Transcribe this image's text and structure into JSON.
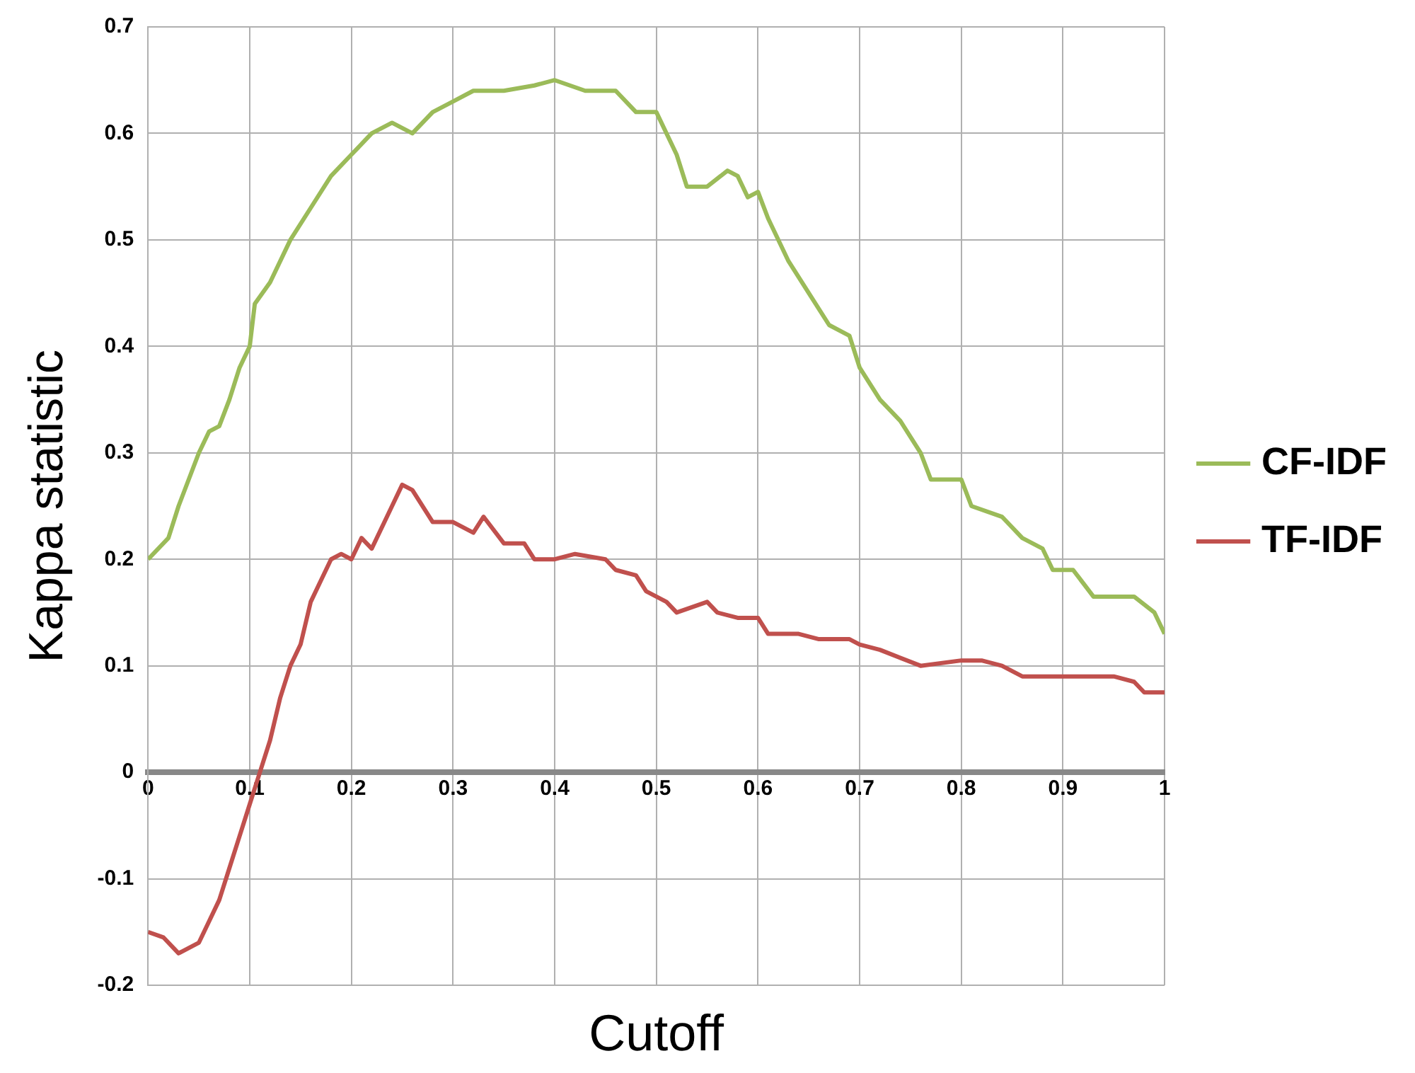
{
  "chart_data": {
    "type": "line",
    "xlabel": "Cutoff",
    "ylabel": "Kappa statistic",
    "xlim": [
      0,
      1
    ],
    "xticks": [
      0,
      0.1,
      0.2,
      0.3,
      0.4,
      0.5,
      0.6,
      0.7,
      0.8,
      0.9,
      1
    ],
    "ylim": [
      -0.2,
      0.7
    ],
    "yticks": [
      -0.2,
      -0.1,
      0,
      0.1,
      0.2,
      0.3,
      0.4,
      0.5,
      0.6,
      0.7
    ],
    "grid": true,
    "legend": "right",
    "marker": "none",
    "line_style": "solid",
    "series": [
      {
        "name": "CF-IDF",
        "color": "#9bbb59",
        "x": [
          0,
          0.02,
          0.03,
          0.05,
          0.06,
          0.07,
          0.08,
          0.09,
          0.1,
          0.105,
          0.12,
          0.14,
          0.16,
          0.18,
          0.2,
          0.22,
          0.24,
          0.26,
          0.28,
          0.3,
          0.32,
          0.35,
          0.38,
          0.4,
          0.43,
          0.46,
          0.48,
          0.5,
          0.52,
          0.53,
          0.55,
          0.57,
          0.58,
          0.59,
          0.6,
          0.61,
          0.63,
          0.65,
          0.67,
          0.69,
          0.7,
          0.72,
          0.74,
          0.76,
          0.77,
          0.8,
          0.81,
          0.84,
          0.86,
          0.88,
          0.89,
          0.91,
          0.93,
          0.97,
          0.99,
          1
        ],
        "values": [
          0.2,
          0.22,
          0.25,
          0.3,
          0.32,
          0.325,
          0.35,
          0.38,
          0.4,
          0.44,
          0.46,
          0.5,
          0.53,
          0.56,
          0.58,
          0.6,
          0.61,
          0.6,
          0.62,
          0.63,
          0.64,
          0.64,
          0.645,
          0.65,
          0.64,
          0.64,
          0.62,
          0.62,
          0.58,
          0.55,
          0.55,
          0.565,
          0.56,
          0.54,
          0.545,
          0.52,
          0.48,
          0.45,
          0.42,
          0.41,
          0.38,
          0.35,
          0.33,
          0.3,
          0.275,
          0.275,
          0.25,
          0.24,
          0.22,
          0.21,
          0.19,
          0.19,
          0.165,
          0.165,
          0.15,
          0.13
        ]
      },
      {
        "name": "TF-IDF",
        "color": "#c0504d",
        "x": [
          0,
          0.015,
          0.03,
          0.05,
          0.06,
          0.07,
          0.08,
          0.09,
          0.1,
          0.11,
          0.12,
          0.13,
          0.14,
          0.15,
          0.16,
          0.17,
          0.18,
          0.19,
          0.2,
          0.21,
          0.22,
          0.24,
          0.25,
          0.26,
          0.28,
          0.3,
          0.32,
          0.33,
          0.35,
          0.37,
          0.38,
          0.4,
          0.42,
          0.45,
          0.46,
          0.48,
          0.49,
          0.5,
          0.51,
          0.52,
          0.55,
          0.56,
          0.58,
          0.6,
          0.61,
          0.64,
          0.66,
          0.69,
          0.7,
          0.72,
          0.76,
          0.8,
          0.82,
          0.84,
          0.86,
          0.9,
          0.95,
          0.97,
          0.98,
          1
        ],
        "values": [
          -0.15,
          -0.155,
          -0.17,
          -0.16,
          -0.14,
          -0.12,
          -0.09,
          -0.06,
          -0.03,
          0,
          0.03,
          0.07,
          0.1,
          0.12,
          0.16,
          0.18,
          0.2,
          0.205,
          0.2,
          0.22,
          0.21,
          0.25,
          0.27,
          0.265,
          0.235,
          0.235,
          0.225,
          0.24,
          0.215,
          0.215,
          0.2,
          0.2,
          0.205,
          0.2,
          0.19,
          0.185,
          0.17,
          0.165,
          0.16,
          0.15,
          0.16,
          0.15,
          0.145,
          0.145,
          0.13,
          0.13,
          0.125,
          0.125,
          0.12,
          0.115,
          0.1,
          0.105,
          0.105,
          0.1,
          0.09,
          0.09,
          0.09,
          0.085,
          0.075,
          0.075
        ]
      }
    ]
  }
}
